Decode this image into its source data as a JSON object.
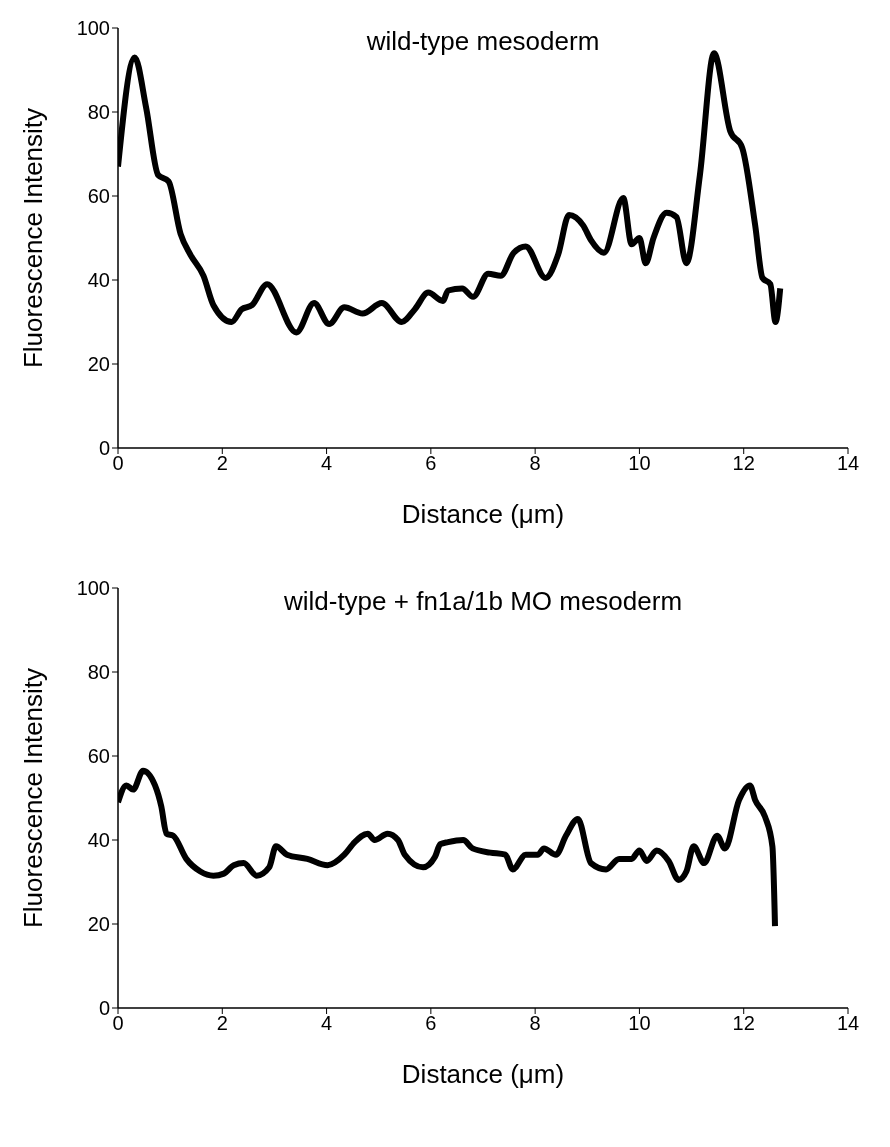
{
  "chart_data": [
    {
      "type": "line",
      "title": "wild-type mesoderm",
      "xlabel": "Distance (μm)",
      "ylabel": "Fluorescence Intensity",
      "color": "#000000",
      "marker": "none",
      "xlim": [
        0,
        14
      ],
      "xticks": [
        0,
        2,
        4,
        6,
        8,
        10,
        12,
        14
      ],
      "ylim": [
        0,
        100
      ],
      "yticks": [
        0,
        20,
        40,
        60,
        80,
        100
      ],
      "x": [
        0,
        0.32,
        0.54,
        0.77,
        0.97,
        1.2,
        1.39,
        1.64,
        1.83,
        2.18,
        2.37,
        2.57,
        2.86,
        3.42,
        3.76,
        4.05,
        4.34,
        4.69,
        5.06,
        5.44,
        5.69,
        5.95,
        6.23,
        6.33,
        6.6,
        6.81,
        7.1,
        7.34,
        7.59,
        7.82,
        8.2,
        8.44,
        8.65,
        8.92,
        9.07,
        9.32,
        9.69,
        9.85,
        10.0,
        10.12,
        10.27,
        10.52,
        10.71,
        10.9,
        11.16,
        11.43,
        11.74,
        11.97,
        12.22,
        12.36,
        12.51,
        12.61,
        12.7
      ],
      "values": [
        67,
        93,
        81,
        65,
        63.5,
        51,
        46,
        41,
        34,
        30,
        33,
        34,
        39,
        27.5,
        34.5,
        29.5,
        33.5,
        32,
        34.5,
        30,
        33,
        37,
        35,
        37.5,
        38,
        36,
        41.5,
        41,
        46.5,
        48,
        40.5,
        46,
        55.5,
        53,
        49.5,
        46.5,
        59.5,
        48.5,
        50,
        44,
        50,
        56,
        55,
        44,
        65,
        94,
        75.5,
        71.5,
        53,
        40.5,
        39,
        30,
        38
      ]
    },
    {
      "type": "line",
      "title": "wild-type + fn1a/1b MO mesoderm",
      "xlabel": "Distance (μm)",
      "ylabel": "Fluorescence Intensity",
      "color": "#000000",
      "marker": "none",
      "xlim": [
        0,
        14
      ],
      "xticks": [
        0,
        2,
        4,
        6,
        8,
        10,
        12,
        14
      ],
      "ylim": [
        0,
        100
      ],
      "yticks": [
        0,
        20,
        40,
        60,
        80,
        100
      ],
      "x": [
        0,
        0.16,
        0.29,
        0.48,
        0.71,
        0.83,
        0.93,
        1.06,
        1.31,
        1.58,
        1.83,
        2.03,
        2.22,
        2.41,
        2.66,
        2.9,
        3.03,
        3.24,
        3.63,
        4.02,
        4.34,
        4.54,
        4.79,
        4.92,
        5.17,
        5.37,
        5.5,
        5.85,
        6.08,
        6.18,
        6.33,
        6.62,
        6.8,
        7.14,
        7.43,
        7.57,
        7.82,
        8.05,
        8.17,
        8.4,
        8.59,
        8.82,
        9.07,
        9.36,
        9.61,
        9.85,
        10.0,
        10.14,
        10.33,
        10.56,
        10.75,
        10.9,
        11.04,
        11.24,
        11.49,
        11.64,
        11.91,
        12.12,
        12.22,
        12.41,
        12.55,
        12.6
      ],
      "values": [
        49,
        53,
        52,
        56.5,
        53,
        48,
        41.5,
        41,
        35.5,
        32.5,
        31.5,
        32,
        34,
        34.5,
        31.5,
        33.5,
        38.5,
        36.5,
        35.5,
        34,
        36.5,
        39.5,
        41.5,
        40,
        41.5,
        40,
        36.5,
        33.5,
        36,
        39,
        39.5,
        40,
        38,
        37,
        36.5,
        33,
        36.5,
        36.5,
        38,
        36.5,
        41,
        45,
        34.5,
        33,
        35.5,
        35.5,
        37.5,
        35,
        37.5,
        35,
        30.5,
        32.5,
        38.5,
        34.5,
        41,
        38,
        49.5,
        53,
        49.5,
        45.5,
        38.5,
        19.5
      ]
    }
  ]
}
